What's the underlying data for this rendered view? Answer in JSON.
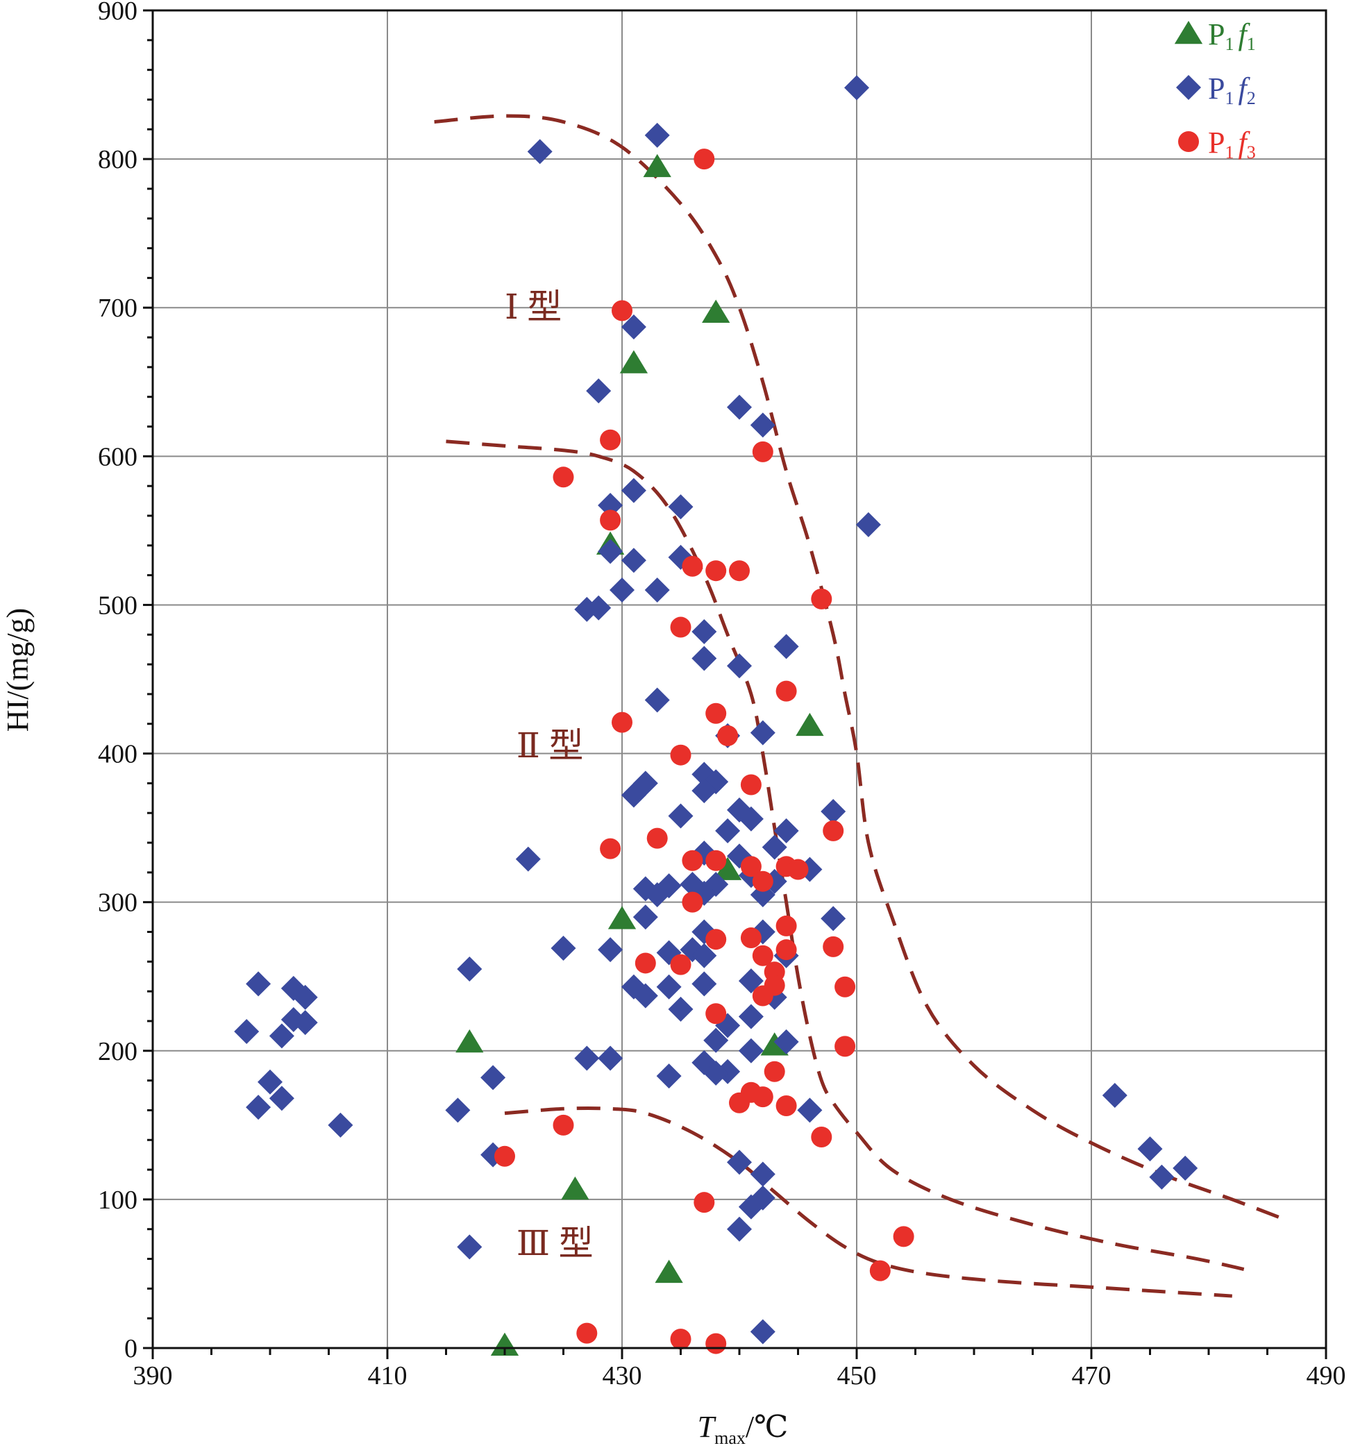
{
  "chart_data": {
    "type": "scatter",
    "title": "",
    "xlabel": {
      "main": "T",
      "sub": "max",
      "unit": "/℃"
    },
    "ylabel": "HI/(mg/g)",
    "xlim": [
      390,
      490
    ],
    "ylim": [
      0,
      900
    ],
    "xticks": [
      390,
      410,
      430,
      450,
      470,
      490
    ],
    "yticks": [
      0,
      100,
      200,
      300,
      400,
      500,
      600,
      700,
      800,
      900
    ],
    "grid": true,
    "legend_position": "top-right",
    "region_labels": [
      {
        "text": "Ⅰ 型",
        "x": 420,
        "y": 700
      },
      {
        "text": "Ⅱ 型",
        "x": 421,
        "y": 405
      },
      {
        "text": "Ⅲ 型",
        "x": 421,
        "y": 70
      }
    ],
    "boundary_color": "#8b2a22",
    "boundaries": [
      {
        "name": "I-II boundary",
        "points": [
          [
            414,
            825
          ],
          [
            420,
            829
          ],
          [
            425,
            825
          ],
          [
            430,
            808
          ],
          [
            435,
            770
          ],
          [
            438,
            735
          ],
          [
            440,
            700
          ],
          [
            442,
            650
          ],
          [
            444,
            590
          ],
          [
            446,
            540
          ],
          [
            448,
            480
          ],
          [
            449,
            440
          ],
          [
            450,
            400
          ],
          [
            451,
            340
          ],
          [
            453,
            290
          ],
          [
            456,
            230
          ],
          [
            460,
            190
          ],
          [
            465,
            160
          ],
          [
            470,
            138
          ],
          [
            476,
            117
          ],
          [
            482,
            100
          ],
          [
            486,
            88
          ]
        ]
      },
      {
        "name": "II-III boundary upper",
        "points": [
          [
            415,
            610
          ],
          [
            420,
            607
          ],
          [
            425,
            604
          ],
          [
            428,
            600
          ],
          [
            431,
            590
          ],
          [
            434,
            565
          ],
          [
            437,
            520
          ],
          [
            439,
            480
          ],
          [
            441,
            440
          ],
          [
            442,
            400
          ],
          [
            443,
            350
          ],
          [
            444,
            300
          ],
          [
            445,
            250
          ],
          [
            446,
            210
          ],
          [
            447,
            180
          ],
          [
            448,
            165
          ],
          [
            450,
            145
          ],
          [
            453,
            120
          ],
          [
            458,
            100
          ],
          [
            465,
            83
          ],
          [
            472,
            70
          ],
          [
            479,
            60
          ],
          [
            483,
            53
          ]
        ]
      },
      {
        "name": "II-III boundary lower",
        "points": [
          [
            420,
            158
          ],
          [
            425,
            161
          ],
          [
            429,
            161
          ],
          [
            432,
            158
          ],
          [
            436,
            145
          ],
          [
            440,
            125
          ],
          [
            443,
            105
          ],
          [
            446,
            85
          ],
          [
            449,
            68
          ],
          [
            452,
            57
          ],
          [
            456,
            50
          ],
          [
            462,
            45
          ],
          [
            470,
            41
          ],
          [
            476,
            38
          ],
          [
            482,
            35
          ]
        ]
      }
    ],
    "series": [
      {
        "name_main": "P",
        "name_sub1": "1",
        "name_mid": "f",
        "name_sub2": "1",
        "marker": "triangle",
        "color": "#2e7d32",
        "points": [
          [
            433,
            795
          ],
          [
            438,
            697
          ],
          [
            431,
            663
          ],
          [
            429,
            541
          ],
          [
            446,
            419
          ],
          [
            439,
            322
          ],
          [
            430,
            289
          ],
          [
            417,
            206
          ],
          [
            443,
            204
          ],
          [
            426,
            107
          ],
          [
            434,
            51
          ],
          [
            420,
            2
          ]
        ]
      },
      {
        "name_main": "P",
        "name_sub1": "1",
        "name_mid": "f",
        "name_sub2": "2",
        "marker": "diamond",
        "color": "#3a4a9e",
        "points": [
          [
            450,
            848
          ],
          [
            433,
            816
          ],
          [
            423,
            805
          ],
          [
            431,
            687
          ],
          [
            428,
            644
          ],
          [
            440,
            633
          ],
          [
            442,
            621
          ],
          [
            431,
            577
          ],
          [
            429,
            567
          ],
          [
            435,
            566
          ],
          [
            451,
            554
          ],
          [
            429,
            536
          ],
          [
            431,
            530
          ],
          [
            435,
            532
          ],
          [
            433,
            510
          ],
          [
            430,
            510
          ],
          [
            427,
            497
          ],
          [
            428,
            498
          ],
          [
            437,
            482
          ],
          [
            444,
            472
          ],
          [
            437,
            464
          ],
          [
            440,
            459
          ],
          [
            433,
            436
          ],
          [
            442,
            414
          ],
          [
            439,
            412
          ],
          [
            437,
            386
          ],
          [
            438,
            381
          ],
          [
            437,
            375
          ],
          [
            432,
            380
          ],
          [
            431,
            372
          ],
          [
            435,
            358
          ],
          [
            448,
            361
          ],
          [
            440,
            362
          ],
          [
            441,
            356
          ],
          [
            439,
            348
          ],
          [
            444,
            348
          ],
          [
            443,
            337
          ],
          [
            437,
            333
          ],
          [
            440,
            331
          ],
          [
            422,
            329
          ],
          [
            446,
            322
          ],
          [
            441,
            318
          ],
          [
            438,
            312
          ],
          [
            434,
            311
          ],
          [
            432,
            309
          ],
          [
            433,
            305
          ],
          [
            437,
            306
          ],
          [
            442,
            305
          ],
          [
            443,
            314
          ],
          [
            436,
            312
          ],
          [
            432,
            290
          ],
          [
            448,
            289
          ],
          [
            437,
            280
          ],
          [
            442,
            280
          ],
          [
            429,
            268
          ],
          [
            425,
            269
          ],
          [
            436,
            268
          ],
          [
            434,
            266
          ],
          [
            437,
            264
          ],
          [
            444,
            264
          ],
          [
            417,
            255
          ],
          [
            399,
            245
          ],
          [
            402,
            242
          ],
          [
            403,
            236
          ],
          [
            431,
            243
          ],
          [
            432,
            237
          ],
          [
            434,
            243
          ],
          [
            437,
            245
          ],
          [
            441,
            247
          ],
          [
            443,
            236
          ],
          [
            435,
            228
          ],
          [
            439,
            217
          ],
          [
            441,
            223
          ],
          [
            398,
            213
          ],
          [
            402,
            221
          ],
          [
            403,
            219
          ],
          [
            401,
            210
          ],
          [
            438,
            207
          ],
          [
            444,
            206
          ],
          [
            441,
            200
          ],
          [
            427,
            195
          ],
          [
            429,
            195
          ],
          [
            437,
            192
          ],
          [
            439,
            186
          ],
          [
            434,
            183
          ],
          [
            438,
            185
          ],
          [
            419,
            182
          ],
          [
            400,
            179
          ],
          [
            399,
            162
          ],
          [
            401,
            168
          ],
          [
            406,
            150
          ],
          [
            416,
            160
          ],
          [
            446,
            160
          ],
          [
            472,
            170
          ],
          [
            419,
            130
          ],
          [
            440,
            125
          ],
          [
            442,
            117
          ],
          [
            475,
            134
          ],
          [
            476,
            115
          ],
          [
            478,
            121
          ],
          [
            441,
            95
          ],
          [
            442,
            101
          ],
          [
            440,
            80
          ],
          [
            417,
            68
          ],
          [
            442,
            11
          ]
        ]
      },
      {
        "name_main": "P",
        "name_sub1": "1",
        "name_mid": "f",
        "name_sub2": "3",
        "marker": "circle",
        "color": "#e8302a",
        "points": [
          [
            437,
            800
          ],
          [
            430,
            698
          ],
          [
            429,
            611
          ],
          [
            442,
            603
          ],
          [
            425,
            586
          ],
          [
            429,
            557
          ],
          [
            436,
            526
          ],
          [
            438,
            523
          ],
          [
            440,
            523
          ],
          [
            447,
            504
          ],
          [
            435,
            485
          ],
          [
            444,
            442
          ],
          [
            430,
            421
          ],
          [
            438,
            427
          ],
          [
            439,
            412
          ],
          [
            435,
            399
          ],
          [
            441,
            379
          ],
          [
            448,
            348
          ],
          [
            429,
            336
          ],
          [
            433,
            343
          ],
          [
            436,
            328
          ],
          [
            438,
            328
          ],
          [
            441,
            324
          ],
          [
            444,
            324
          ],
          [
            445,
            322
          ],
          [
            442,
            314
          ],
          [
            436,
            300
          ],
          [
            444,
            284
          ],
          [
            438,
            275
          ],
          [
            441,
            276
          ],
          [
            442,
            264
          ],
          [
            444,
            268
          ],
          [
            448,
            270
          ],
          [
            432,
            259
          ],
          [
            435,
            258
          ],
          [
            443,
            253
          ],
          [
            449,
            243
          ],
          [
            443,
            244
          ],
          [
            442,
            237
          ],
          [
            438,
            225
          ],
          [
            449,
            203
          ],
          [
            443,
            186
          ],
          [
            441,
            172
          ],
          [
            442,
            169
          ],
          [
            440,
            165
          ],
          [
            444,
            163
          ],
          [
            447,
            142
          ],
          [
            425,
            150
          ],
          [
            420,
            129
          ],
          [
            437,
            98
          ],
          [
            454,
            75
          ],
          [
            452,
            52
          ],
          [
            427,
            10
          ],
          [
            435,
            6
          ],
          [
            438,
            3
          ]
        ]
      }
    ]
  }
}
